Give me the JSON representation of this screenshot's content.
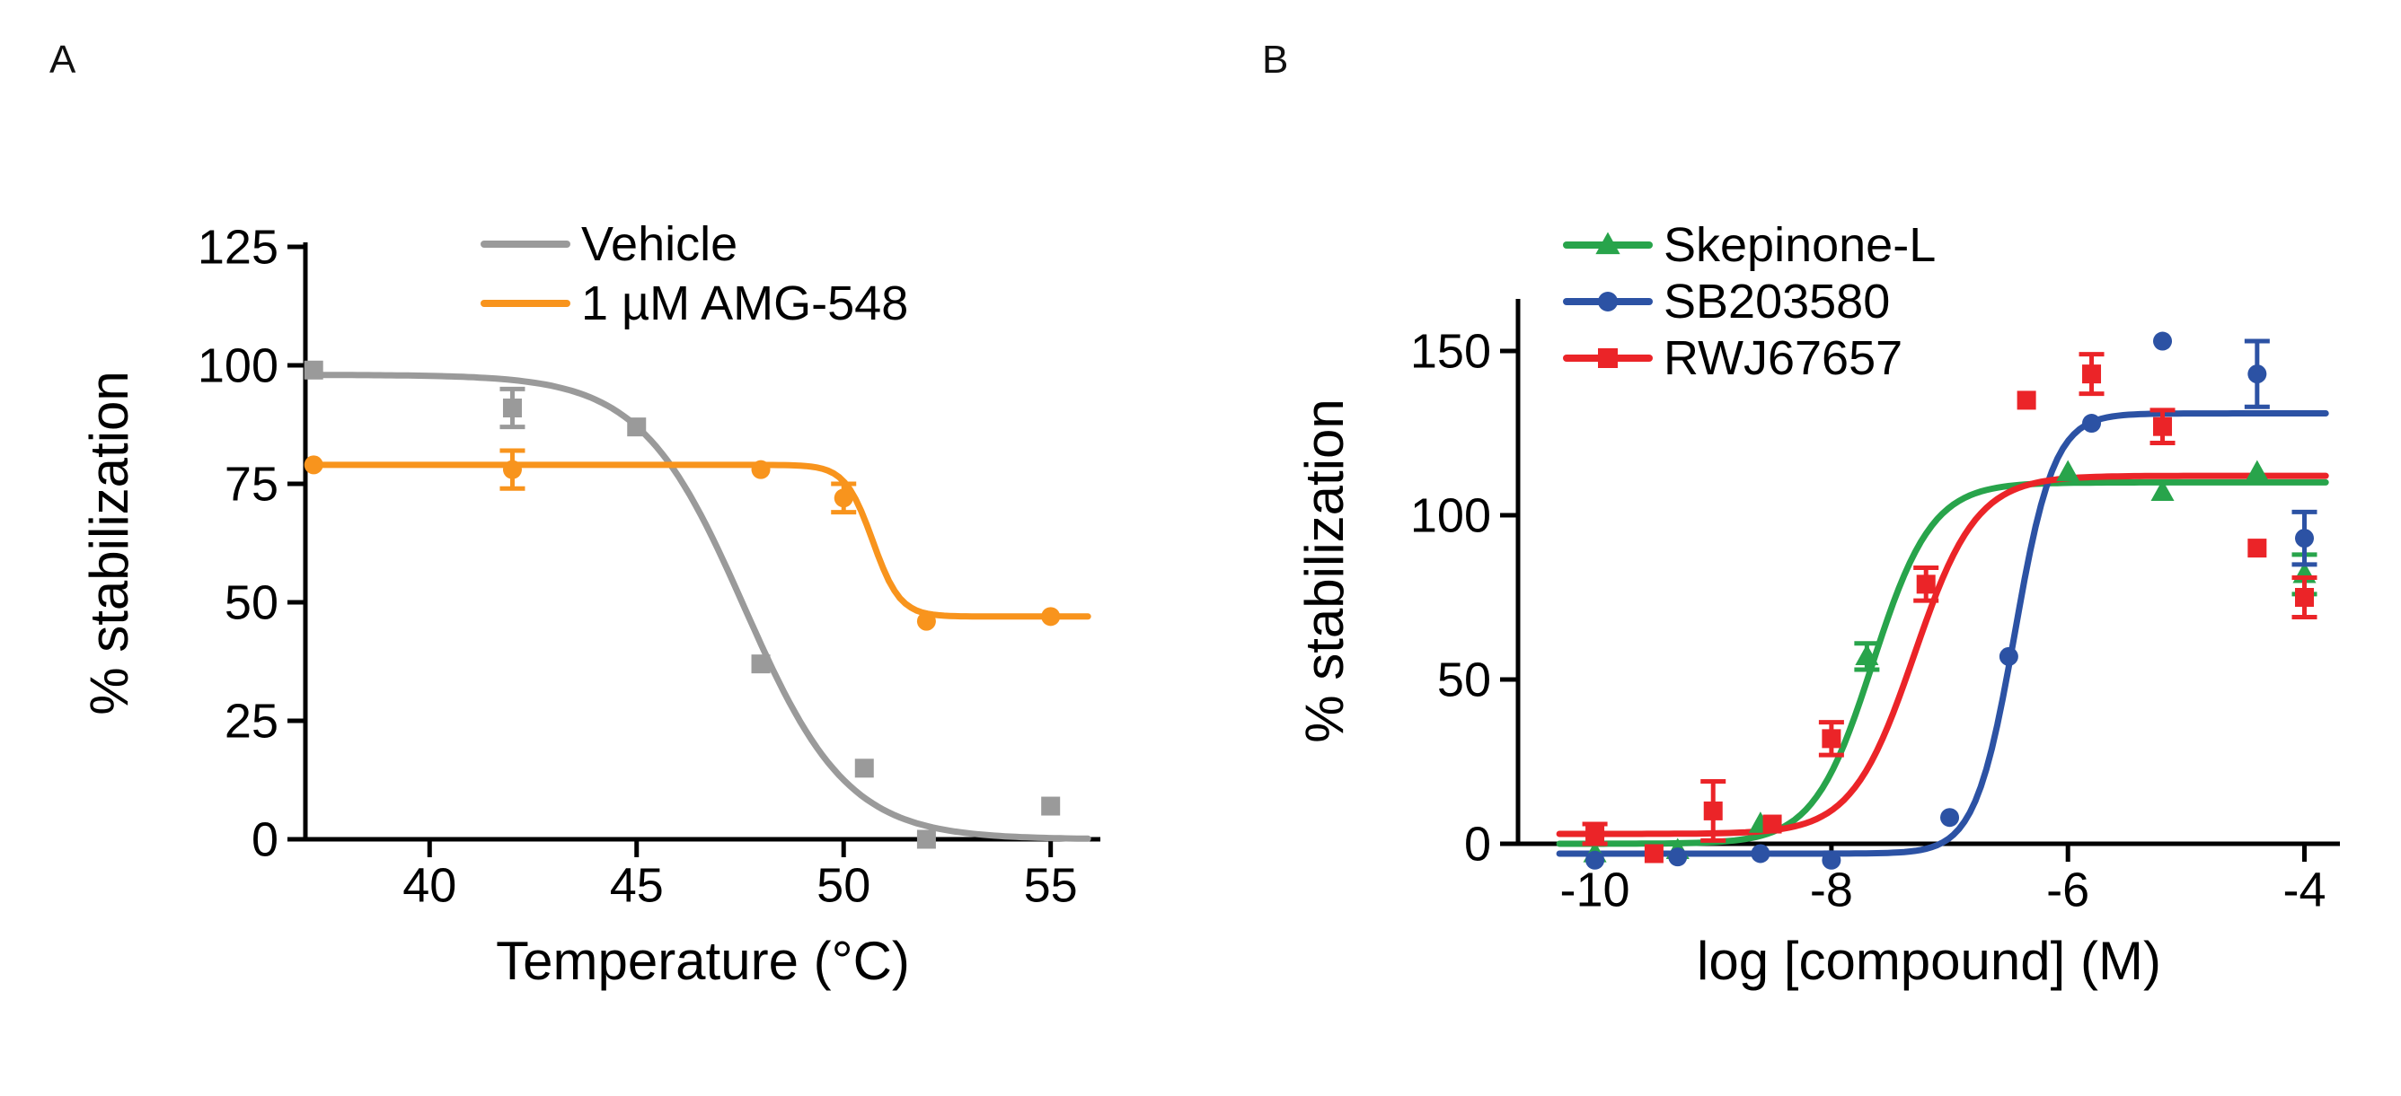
{
  "figure": {
    "background": "#ffffff"
  },
  "panels": [
    {
      "label": "A"
    },
    {
      "label": "B"
    }
  ],
  "chart_data": [
    {
      "type": "scatter",
      "title": "",
      "xlabel": "Temperature (°C)",
      "ylabel": "% stabilization",
      "xlim": [
        37,
        56.2
      ],
      "ylim": [
        0,
        125
      ],
      "xticks": [
        40,
        45,
        50,
        55
      ],
      "yticks": [
        0,
        25,
        50,
        75,
        100,
        125
      ],
      "grid": false,
      "legend_position": "top-inside",
      "legend_markers": false,
      "series": [
        {
          "name": "Vehicle",
          "color": "#9A9A9A",
          "marker": "square",
          "points": [
            {
              "x": 37.2,
              "y": 99
            },
            {
              "x": 42,
              "y": 91,
              "err": 4
            },
            {
              "x": 45,
              "y": 87
            },
            {
              "x": 48,
              "y": 37
            },
            {
              "x": 50.5,
              "y": 15
            },
            {
              "x": 52,
              "y": 0
            },
            {
              "x": 55,
              "y": 7
            }
          ],
          "fit": {
            "model": "sigmoid-decreasing",
            "bottom": 0,
            "top": 98,
            "mid": 47.6,
            "slope": 0.8,
            "xstart": 37.2,
            "xend": 55.9
          }
        },
        {
          "name": "1 µM AMG-548",
          "color": "#F8941D",
          "marker": "circle",
          "points": [
            {
              "x": 37.2,
              "y": 79
            },
            {
              "x": 42,
              "y": 78,
              "err": 4
            },
            {
              "x": 48,
              "y": 78
            },
            {
              "x": 50,
              "y": 72,
              "err": 3
            },
            {
              "x": 52,
              "y": 46
            },
            {
              "x": 55,
              "y": 47
            }
          ],
          "fit": {
            "model": "sigmoid-decreasing",
            "bottom": 47,
            "top": 79,
            "mid": 50.7,
            "slope": 3,
            "xstart": 37.2,
            "xend": 55.9
          }
        }
      ]
    },
    {
      "type": "scatter",
      "title": "",
      "xlabel": "log [compound] (M)",
      "ylabel": "% stabilization",
      "xlim": [
        -10.65,
        -3.7
      ],
      "ylim": [
        0,
        150
      ],
      "xticks": [
        -10,
        -8,
        -6,
        -4
      ],
      "yticks": [
        0,
        50,
        100,
        150
      ],
      "grid": false,
      "legend_position": "top-inside",
      "legend_markers": true,
      "series": [
        {
          "name": "Skepinone-L",
          "color": "#28A44B",
          "marker": "triangle",
          "points": [
            {
              "x": -10,
              "y": -3
            },
            {
              "x": -9.3,
              "y": -2
            },
            {
              "x": -8.6,
              "y": 6
            },
            {
              "x": -7.7,
              "y": 57,
              "err": 4
            },
            {
              "x": -6,
              "y": 113
            },
            {
              "x": -5.2,
              "y": 107
            },
            {
              "x": -4.4,
              "y": 113
            },
            {
              "x": -4,
              "y": 82,
              "err": 6
            }
          ],
          "fit": {
            "model": "sigmoid-increasing",
            "bottom": 0,
            "top": 110,
            "mid": -7.65,
            "slope": 4,
            "xstart": -10.3,
            "xend": -3.82
          }
        },
        {
          "name": "SB203580",
          "color": "#2C52A4",
          "marker": "circle",
          "points": [
            {
              "x": -10,
              "y": -5
            },
            {
              "x": -9.3,
              "y": -4
            },
            {
              "x": -8.6,
              "y": -3
            },
            {
              "x": -8,
              "y": -5
            },
            {
              "x": -7,
              "y": 8
            },
            {
              "x": -6.5,
              "y": 57
            },
            {
              "x": -5.8,
              "y": 128
            },
            {
              "x": -5.2,
              "y": 153
            },
            {
              "x": -4.4,
              "y": 143,
              "err": 10
            },
            {
              "x": -4,
              "y": 93,
              "err": 8
            }
          ],
          "fit": {
            "model": "sigmoid-increasing",
            "bottom": -3,
            "top": 131,
            "mid": -6.45,
            "slope": 6,
            "xstart": -10.3,
            "xend": -3.82
          }
        },
        {
          "name": "RWJ67657",
          "color": "#EB2428",
          "marker": "square",
          "points": [
            {
              "x": -10,
              "y": 3,
              "err": 3
            },
            {
              "x": -9.5,
              "y": -3
            },
            {
              "x": -9,
              "y": 10,
              "err": 9
            },
            {
              "x": -8.5,
              "y": 6
            },
            {
              "x": -8,
              "y": 32,
              "err": 5
            },
            {
              "x": -7.2,
              "y": 79,
              "err": 5
            },
            {
              "x": -6.35,
              "y": 135
            },
            {
              "x": -5.8,
              "y": 143,
              "err": 6
            },
            {
              "x": -5.2,
              "y": 127,
              "err": 5
            },
            {
              "x": -4.4,
              "y": 90
            },
            {
              "x": -4,
              "y": 75,
              "err": 6
            }
          ],
          "fit": {
            "model": "sigmoid-increasing",
            "bottom": 3,
            "top": 112,
            "mid": -7.3,
            "slope": 3.8,
            "xstart": -10.3,
            "xend": -3.82
          }
        }
      ]
    }
  ]
}
